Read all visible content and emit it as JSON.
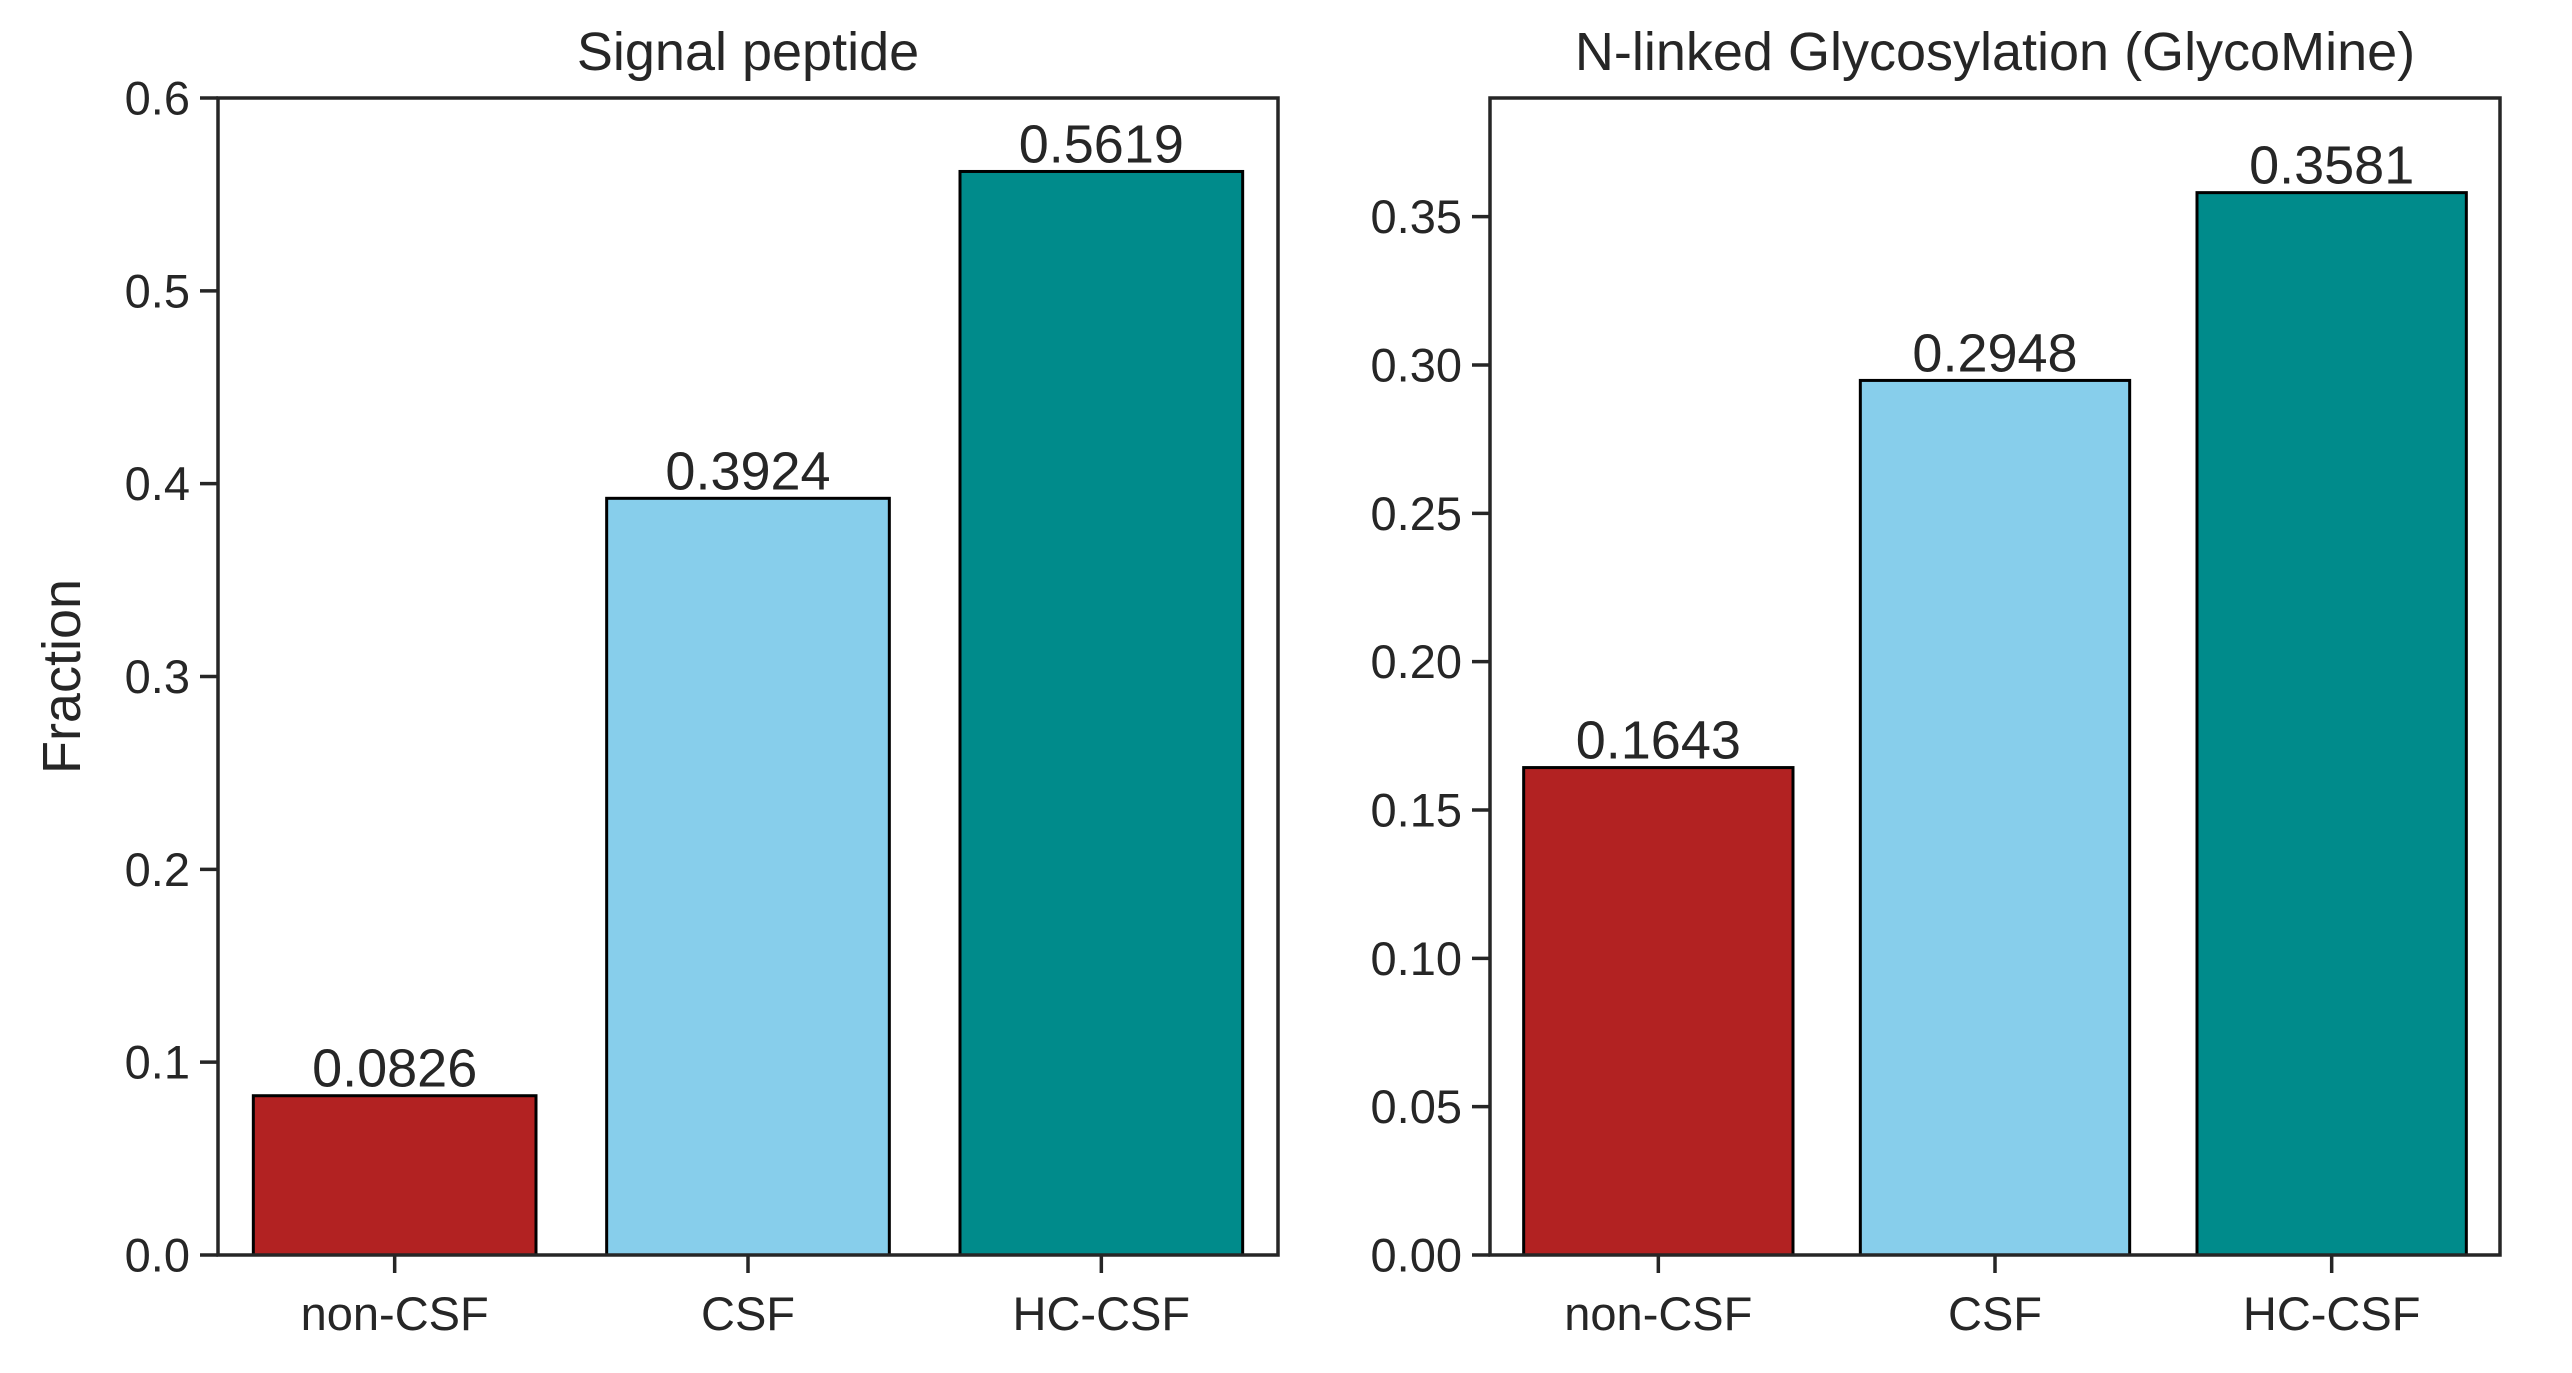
{
  "chart_data": [
    {
      "type": "bar",
      "title": "Signal peptide",
      "ylabel": "Fraction",
      "xlabel": "",
      "categories": [
        "non-CSF",
        "CSF",
        "HC-CSF"
      ],
      "values": [
        0.0826,
        0.3924,
        0.5619
      ],
      "value_labels": [
        "0.0826",
        "0.3924",
        "0.5619"
      ],
      "colors": [
        "#b22222",
        "#87ceeb",
        "#008b8b"
      ],
      "ylim": [
        0,
        0.6
      ],
      "yticks": [
        0.0,
        0.1,
        0.2,
        0.3,
        0.4,
        0.5,
        0.6
      ],
      "ytick_labels": [
        "0.0",
        "0.1",
        "0.2",
        "0.3",
        "0.4",
        "0.5",
        "0.6"
      ],
      "grid": false
    },
    {
      "type": "bar",
      "title": "N-linked Glycosylation (GlycoMine)",
      "ylabel": "",
      "xlabel": "",
      "categories": [
        "non-CSF",
        "CSF",
        "HC-CSF"
      ],
      "values": [
        0.1643,
        0.2948,
        0.3581
      ],
      "value_labels": [
        "0.1643",
        "0.2948",
        "0.3581"
      ],
      "colors": [
        "#b22222",
        "#87ceeb",
        "#008b8b"
      ],
      "ylim": [
        0,
        0.39
      ],
      "yticks": [
        0.0,
        0.05,
        0.1,
        0.15,
        0.2,
        0.25,
        0.3,
        0.35
      ],
      "ytick_labels": [
        "0.00",
        "0.05",
        "0.10",
        "0.15",
        "0.20",
        "0.25",
        "0.30",
        "0.35"
      ],
      "grid": false
    }
  ]
}
